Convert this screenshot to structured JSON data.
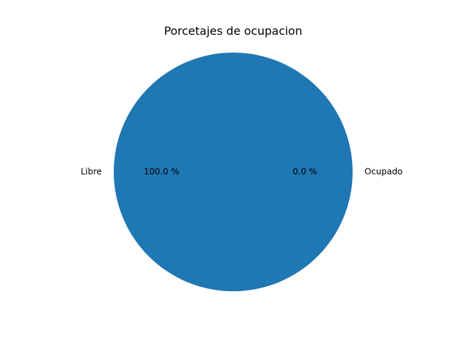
{
  "chart_data": {
    "type": "pie",
    "title": "Porcetajes de ocupacion",
    "slices": [
      {
        "label": "Ocupado",
        "value": 0.0,
        "pct_label": "0.0 %",
        "color": "#1f77b4"
      },
      {
        "label": "Libre",
        "value": 100.0,
        "pct_label": "100.0 %",
        "color": "#1f77b4"
      }
    ],
    "legend": "none"
  }
}
